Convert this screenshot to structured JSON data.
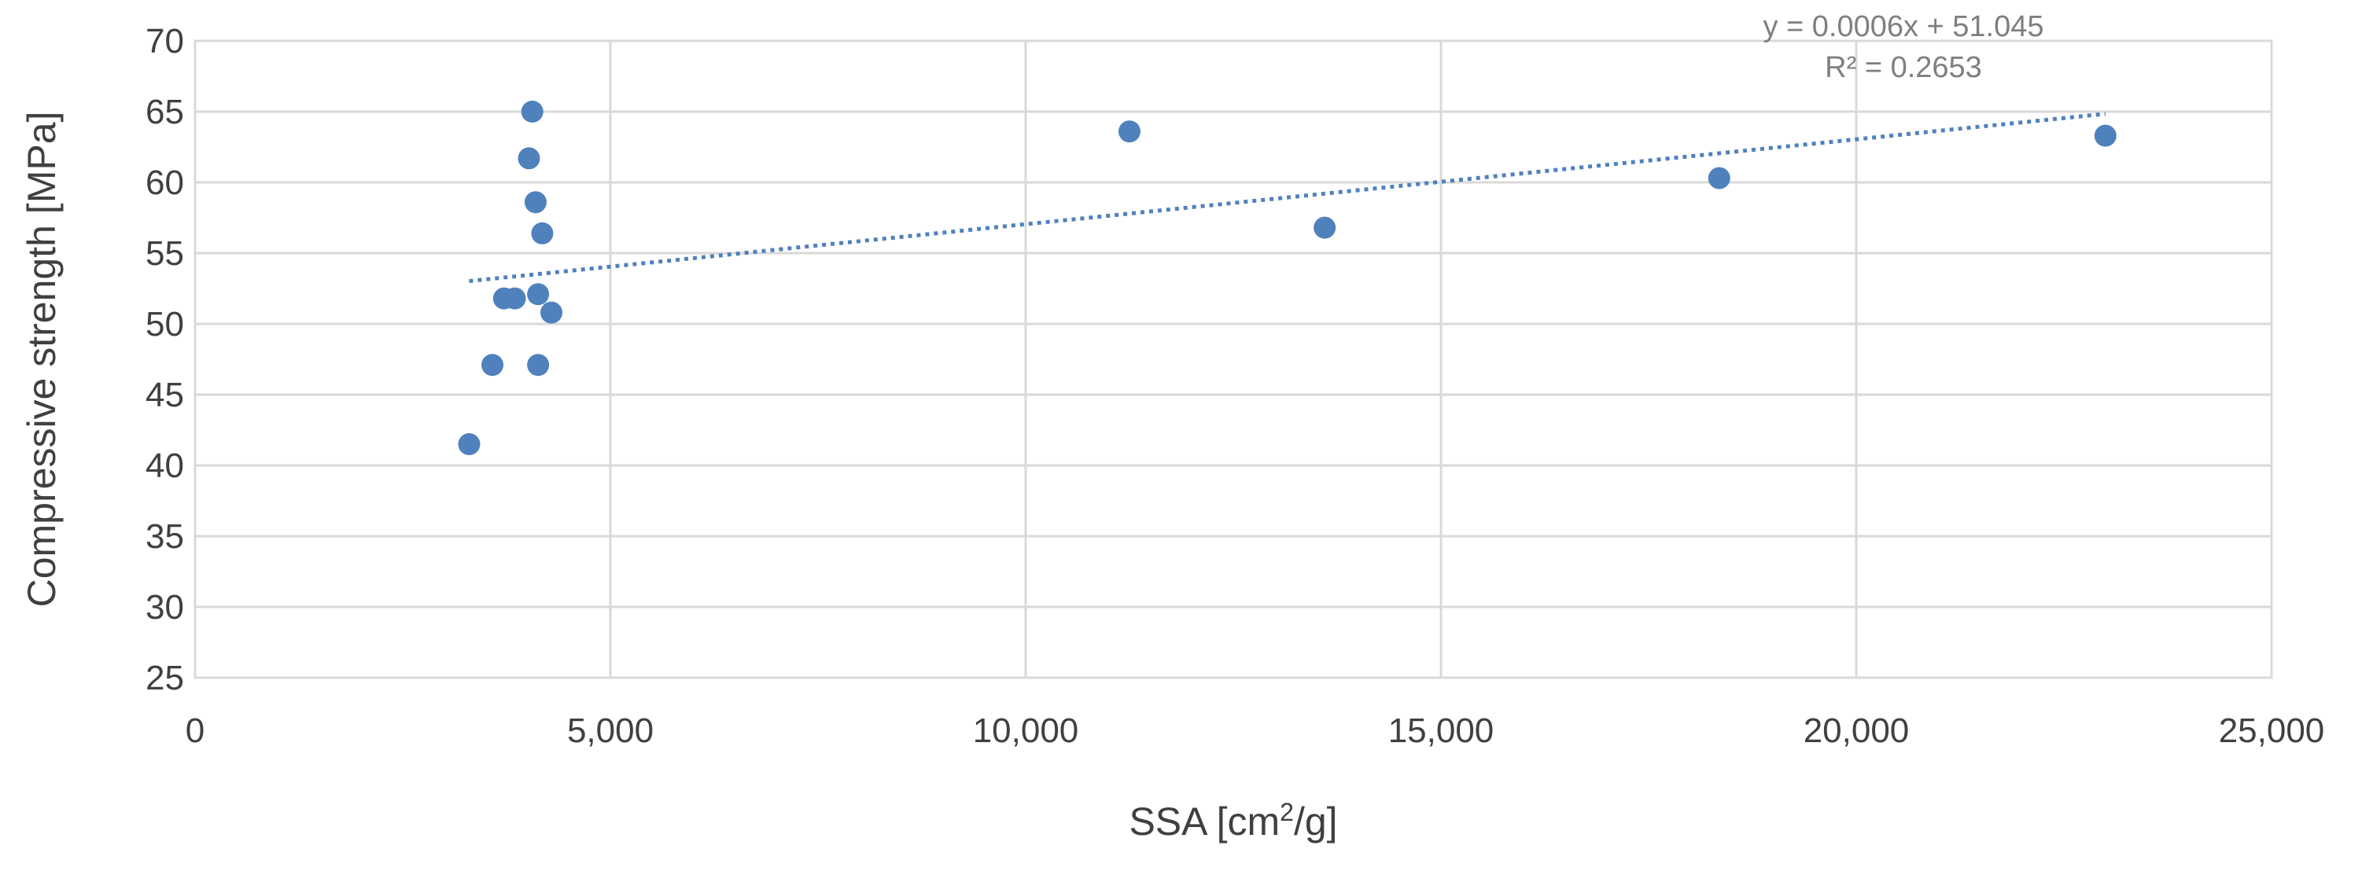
{
  "chart_data": {
    "type": "scatter",
    "title": "",
    "xlabel_main": "SSA [cm",
    "xlabel_sup": "2",
    "xlabel_tail": "/g]",
    "ylabel": "Compressive strength  [MPa]",
    "xlim": [
      0,
      25000
    ],
    "ylim": [
      25,
      70
    ],
    "x_ticks": [
      0,
      5000,
      10000,
      15000,
      20000,
      25000
    ],
    "x_tick_labels": [
      "0",
      "5,000",
      "10,000",
      "15,000",
      "20,000",
      "25,000"
    ],
    "y_ticks": [
      25,
      30,
      35,
      40,
      45,
      50,
      55,
      60,
      65,
      70
    ],
    "y_tick_labels": [
      "25",
      "30",
      "35",
      "40",
      "45",
      "50",
      "55",
      "60",
      "65",
      "70"
    ],
    "grid": true,
    "marker_color": "#4f81bd",
    "series": [
      {
        "x": [
          3300,
          3580,
          3720,
          3850,
          4020,
          4060,
          4100,
          4130,
          4130,
          4180,
          4290,
          11250,
          13600,
          18350,
          23000
        ],
        "y": [
          41.5,
          47.1,
          51.8,
          51.8,
          61.7,
          65.0,
          58.6,
          52.1,
          47.1,
          56.4,
          50.8,
          63.6,
          56.8,
          60.3,
          63.3
        ]
      }
    ],
    "trendline": {
      "type": "linear",
      "slope": 0.0006,
      "intercept": 51.045,
      "x_range": [
        3300,
        23000
      ],
      "equation": "y = 0.0006x + 51.045",
      "r2": "R² = 0.2653",
      "style": "dotted"
    }
  }
}
